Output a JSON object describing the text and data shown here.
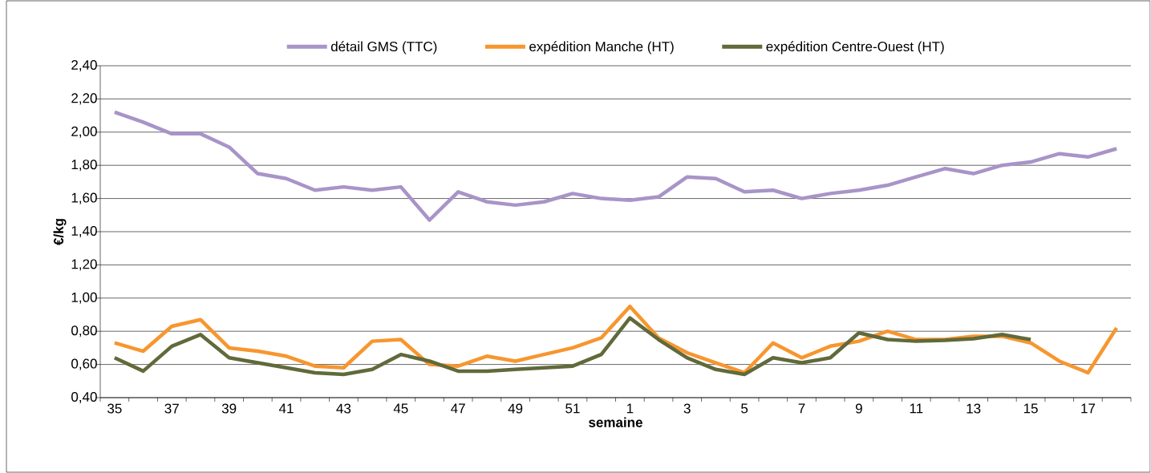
{
  "chart_data": {
    "type": "line",
    "xlabel": "semaine",
    "ylabel": "€/kg",
    "categories": [
      "35",
      null,
      "37",
      null,
      "39",
      null,
      "41",
      null,
      "43",
      null,
      "45",
      null,
      "47",
      null,
      "49",
      null,
      "51",
      null,
      "1",
      null,
      "3",
      null,
      "5",
      null,
      "7",
      null,
      "9",
      null,
      "11",
      null,
      "13",
      null,
      "15",
      null,
      "17",
      null
    ],
    "series": [
      {
        "name": "détail GMS (TTC)",
        "color": "#a894c8",
        "values": [
          2.12,
          2.06,
          1.99,
          1.99,
          1.91,
          1.75,
          1.72,
          1.65,
          1.67,
          1.65,
          1.67,
          1.47,
          1.64,
          1.58,
          1.56,
          1.58,
          1.63,
          1.6,
          1.59,
          1.61,
          1.73,
          1.72,
          1.64,
          1.65,
          1.6,
          1.63,
          1.65,
          1.68,
          1.73,
          1.78,
          1.75,
          1.8,
          1.82,
          1.87,
          1.85,
          1.9
        ]
      },
      {
        "name": "expédition Manche (HT)",
        "color": "#f7962f",
        "values": [
          0.73,
          0.68,
          0.83,
          0.87,
          0.7,
          0.68,
          0.65,
          0.59,
          0.58,
          0.74,
          0.75,
          0.6,
          0.59,
          0.65,
          0.62,
          0.66,
          0.7,
          0.76,
          0.95,
          0.76,
          0.67,
          0.61,
          0.55,
          0.73,
          0.64,
          0.71,
          0.74,
          0.8,
          0.75,
          0.75,
          0.77,
          0.77,
          0.73,
          0.62,
          0.55,
          0.82
        ]
      },
      {
        "name": "expédition Centre-Ouest (HT)",
        "color": "#606a3a",
        "values": [
          0.64,
          0.56,
          0.71,
          0.78,
          0.64,
          0.61,
          0.58,
          0.55,
          0.54,
          0.57,
          0.66,
          0.62,
          0.56,
          0.56,
          0.57,
          0.58,
          0.59,
          0.66,
          0.88,
          0.75,
          0.64,
          0.57,
          0.54,
          0.64,
          0.61,
          0.64,
          0.79,
          0.75,
          0.74,
          0.745,
          0.755,
          0.78,
          0.75,
          null,
          null,
          null
        ]
      }
    ],
    "ylim": [
      0.4,
      2.4
    ],
    "yticks": [
      {
        "value": 0.4,
        "label": "0,40"
      },
      {
        "value": 0.6,
        "label": "0,60"
      },
      {
        "value": 0.8,
        "label": "0,80"
      },
      {
        "value": 1.0,
        "label": "1,00"
      },
      {
        "value": 1.2,
        "label": "1,20"
      },
      {
        "value": 1.4,
        "label": "1,40"
      },
      {
        "value": 1.6,
        "label": "1,60"
      },
      {
        "value": 1.8,
        "label": "1,80"
      },
      {
        "value": 2.0,
        "label": "2,00"
      },
      {
        "value": 2.2,
        "label": "2,20"
      },
      {
        "value": 2.4,
        "label": "2,40"
      }
    ],
    "grid": "y",
    "legend": "top",
    "marker": "none",
    "line_style": "solid"
  }
}
